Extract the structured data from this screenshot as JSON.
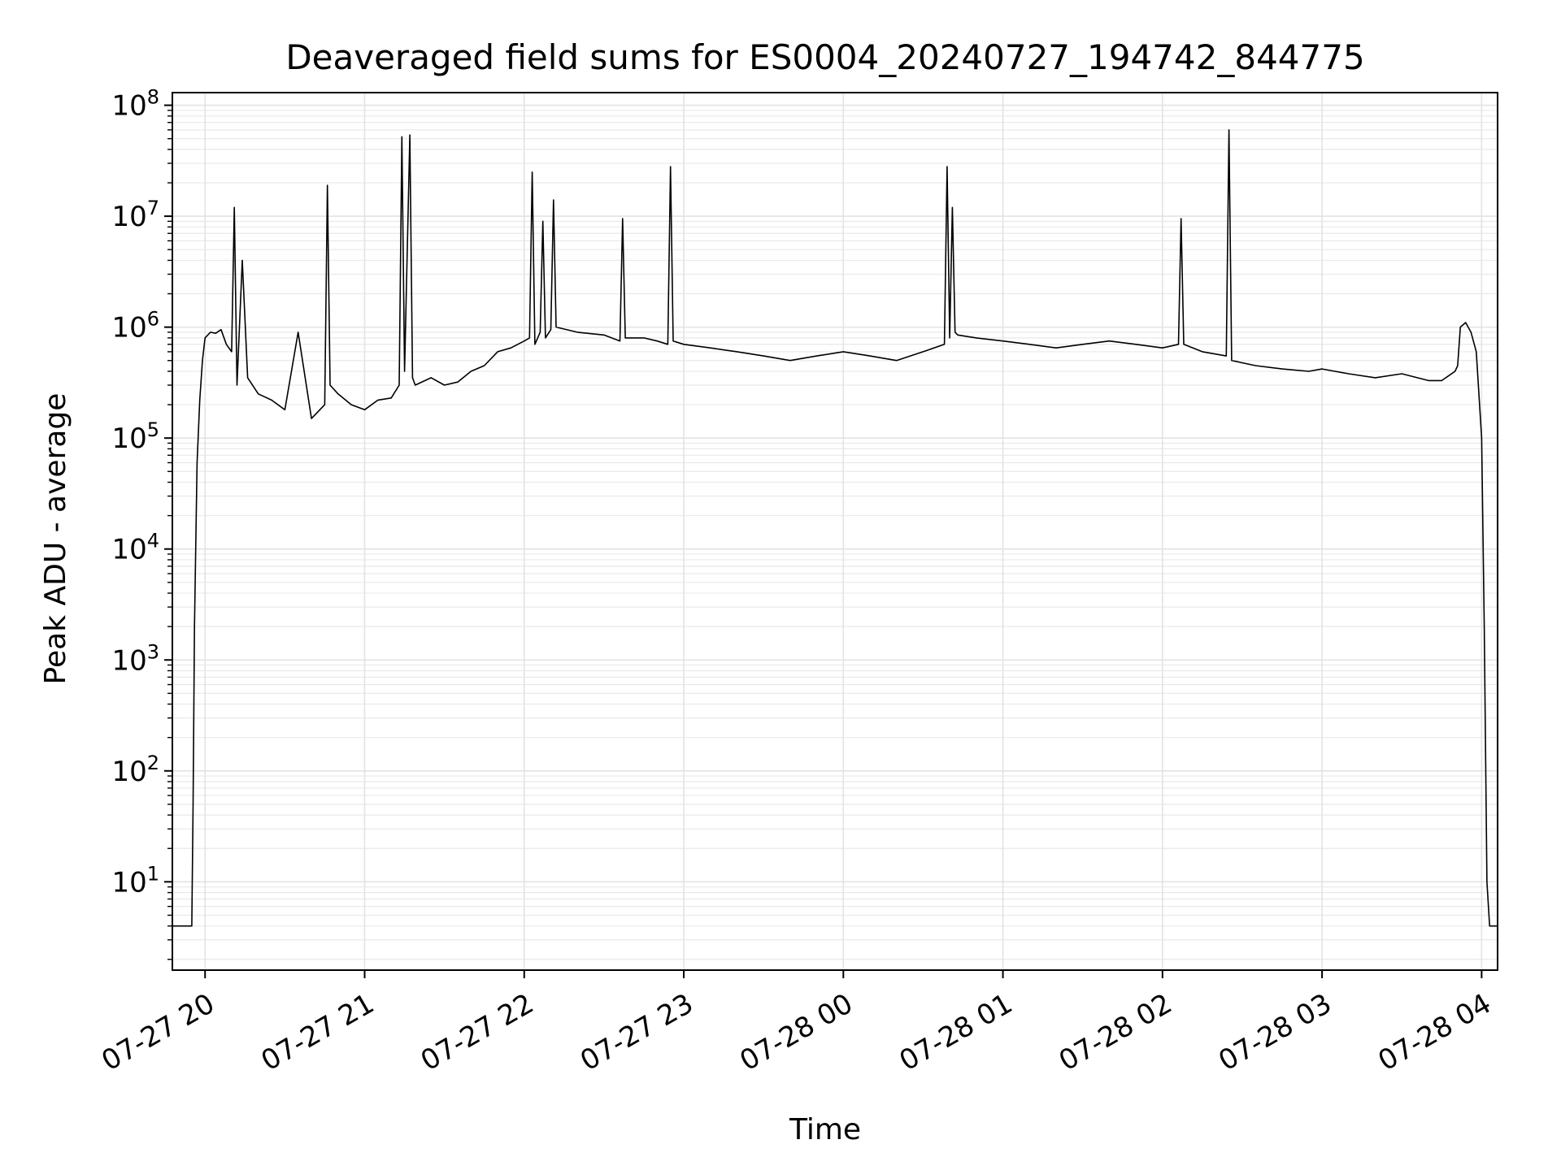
{
  "chart_data": {
    "type": "line",
    "title": "Deaveraged field sums for ES0004_20240727_194742_844775",
    "xlabel": "Time",
    "ylabel": "Peak ADU - average",
    "y_scale": "log",
    "ylim": [
      1.6,
      130000000
    ],
    "xlim": [
      "2024-07-27 19:47:42",
      "2024-07-28 04:06:00"
    ],
    "grid": true,
    "legend": "none",
    "line_color": "#000000",
    "x_ticks": [
      {
        "value": "2024-07-27 20:00",
        "label": "07-27 20"
      },
      {
        "value": "2024-07-27 21:00",
        "label": "07-27 21"
      },
      {
        "value": "2024-07-27 22:00",
        "label": "07-27 22"
      },
      {
        "value": "2024-07-27 23:00",
        "label": "07-27 23"
      },
      {
        "value": "2024-07-28 00:00",
        "label": "07-28 00"
      },
      {
        "value": "2024-07-28 01:00",
        "label": "07-28 01"
      },
      {
        "value": "2024-07-28 02:00",
        "label": "07-28 02"
      },
      {
        "value": "2024-07-28 03:00",
        "label": "07-28 03"
      },
      {
        "value": "2024-07-28 04:00",
        "label": "07-28 04"
      }
    ],
    "y_ticks": [
      {
        "value": 10,
        "base": "10",
        "exp": "1"
      },
      {
        "value": 100,
        "base": "10",
        "exp": "2"
      },
      {
        "value": 1000,
        "base": "10",
        "exp": "3"
      },
      {
        "value": 10000,
        "base": "10",
        "exp": "4"
      },
      {
        "value": 100000,
        "base": "10",
        "exp": "5"
      },
      {
        "value": 1000000,
        "base": "10",
        "exp": "6"
      },
      {
        "value": 10000000,
        "base": "10",
        "exp": "7"
      },
      {
        "value": 100000000,
        "base": "10",
        "exp": "8"
      }
    ],
    "series": [
      {
        "x": [
          "2024-07-27 19:47:42",
          "2024-07-27 19:50",
          "2024-07-27 19:53",
          "2024-07-27 19:55",
          "2024-07-27 19:55:30",
          "2024-07-27 19:56",
          "2024-07-27 19:57",
          "2024-07-27 19:58",
          "2024-07-27 19:59",
          "2024-07-27 20:00",
          "2024-07-27 20:02",
          "2024-07-27 20:04",
          "2024-07-27 20:06",
          "2024-07-27 20:08",
          "2024-07-27 20:10",
          "2024-07-27 20:11",
          "2024-07-27 20:12",
          "2024-07-27 20:14",
          "2024-07-27 20:16",
          "2024-07-27 20:20",
          "2024-07-27 20:25",
          "2024-07-27 20:30",
          "2024-07-27 20:35",
          "2024-07-27 20:40",
          "2024-07-27 20:45",
          "2024-07-27 20:46",
          "2024-07-27 20:47",
          "2024-07-27 20:50",
          "2024-07-27 20:55",
          "2024-07-27 21:00",
          "2024-07-27 21:05",
          "2024-07-27 21:10",
          "2024-07-27 21:13",
          "2024-07-27 21:14",
          "2024-07-27 21:15",
          "2024-07-27 21:17",
          "2024-07-27 21:18",
          "2024-07-27 21:19",
          "2024-07-27 21:25",
          "2024-07-27 21:30",
          "2024-07-27 21:35",
          "2024-07-27 21:40",
          "2024-07-27 21:45",
          "2024-07-27 21:50",
          "2024-07-27 21:55",
          "2024-07-27 22:00",
          "2024-07-27 22:02",
          "2024-07-27 22:03",
          "2024-07-27 22:04",
          "2024-07-27 22:06",
          "2024-07-27 22:07",
          "2024-07-27 22:08",
          "2024-07-27 22:10",
          "2024-07-27 22:11",
          "2024-07-27 22:12",
          "2024-07-27 22:20",
          "2024-07-27 22:30",
          "2024-07-27 22:36",
          "2024-07-27 22:37",
          "2024-07-27 22:38",
          "2024-07-27 22:45",
          "2024-07-27 22:50",
          "2024-07-27 22:54",
          "2024-07-27 22:55",
          "2024-07-27 22:56",
          "2024-07-27 23:00",
          "2024-07-27 23:10",
          "2024-07-27 23:20",
          "2024-07-27 23:30",
          "2024-07-27 23:40",
          "2024-07-27 23:50",
          "2024-07-28 00:00",
          "2024-07-28 00:10",
          "2024-07-28 00:20",
          "2024-07-28 00:30",
          "2024-07-28 00:38",
          "2024-07-28 00:39",
          "2024-07-28 00:40",
          "2024-07-28 00:41",
          "2024-07-28 00:42",
          "2024-07-28 00:43",
          "2024-07-28 00:50",
          "2024-07-28 01:00",
          "2024-07-28 01:10",
          "2024-07-28 01:20",
          "2024-07-28 01:30",
          "2024-07-28 01:40",
          "2024-07-28 01:50",
          "2024-07-28 02:00",
          "2024-07-28 02:06",
          "2024-07-28 02:07",
          "2024-07-28 02:08",
          "2024-07-28 02:15",
          "2024-07-28 02:24",
          "2024-07-28 02:25",
          "2024-07-28 02:26",
          "2024-07-28 02:35",
          "2024-07-28 02:45",
          "2024-07-28 02:55",
          "2024-07-28 03:00",
          "2024-07-28 03:10",
          "2024-07-28 03:20",
          "2024-07-28 03:30",
          "2024-07-28 03:40",
          "2024-07-28 03:45",
          "2024-07-28 03:50",
          "2024-07-28 03:51",
          "2024-07-28 03:52",
          "2024-07-28 03:54",
          "2024-07-28 03:56",
          "2024-07-28 03:58",
          "2024-07-28 04:00",
          "2024-07-28 04:01",
          "2024-07-28 04:02",
          "2024-07-28 04:03",
          "2024-07-28 04:04",
          "2024-07-28 04:06"
        ],
        "values": [
          4,
          4,
          4,
          4,
          50,
          2000,
          60000,
          220000,
          500000,
          800000,
          900000,
          880000,
          950000,
          700000,
          600000,
          12000000,
          300000,
          4000000,
          350000,
          250000,
          220000,
          180000,
          900000,
          150000,
          200000,
          19000000,
          300000,
          250000,
          200000,
          180000,
          220000,
          230000,
          300000,
          52000000,
          400000,
          54000000,
          350000,
          300000,
          350000,
          300000,
          320000,
          400000,
          450000,
          600000,
          650000,
          750000,
          800000,
          25000000,
          700000,
          900000,
          9000000,
          800000,
          950000,
          14000000,
          1000000,
          900000,
          850000,
          750000,
          9500000,
          800000,
          800000,
          750000,
          700000,
          28000000,
          750000,
          700000,
          650000,
          600000,
          550000,
          500000,
          550000,
          600000,
          550000,
          500000,
          600000,
          700000,
          28000000,
          800000,
          12000000,
          900000,
          850000,
          800000,
          750000,
          700000,
          650000,
          700000,
          750000,
          700000,
          650000,
          700000,
          9500000,
          700000,
          600000,
          550000,
          60000000,
          500000,
          450000,
          420000,
          400000,
          420000,
          380000,
          350000,
          380000,
          330000,
          330000,
          400000,
          450000,
          1000000,
          1100000,
          900000,
          600000,
          100000,
          2000,
          10,
          4,
          4,
          4
        ]
      }
    ]
  }
}
